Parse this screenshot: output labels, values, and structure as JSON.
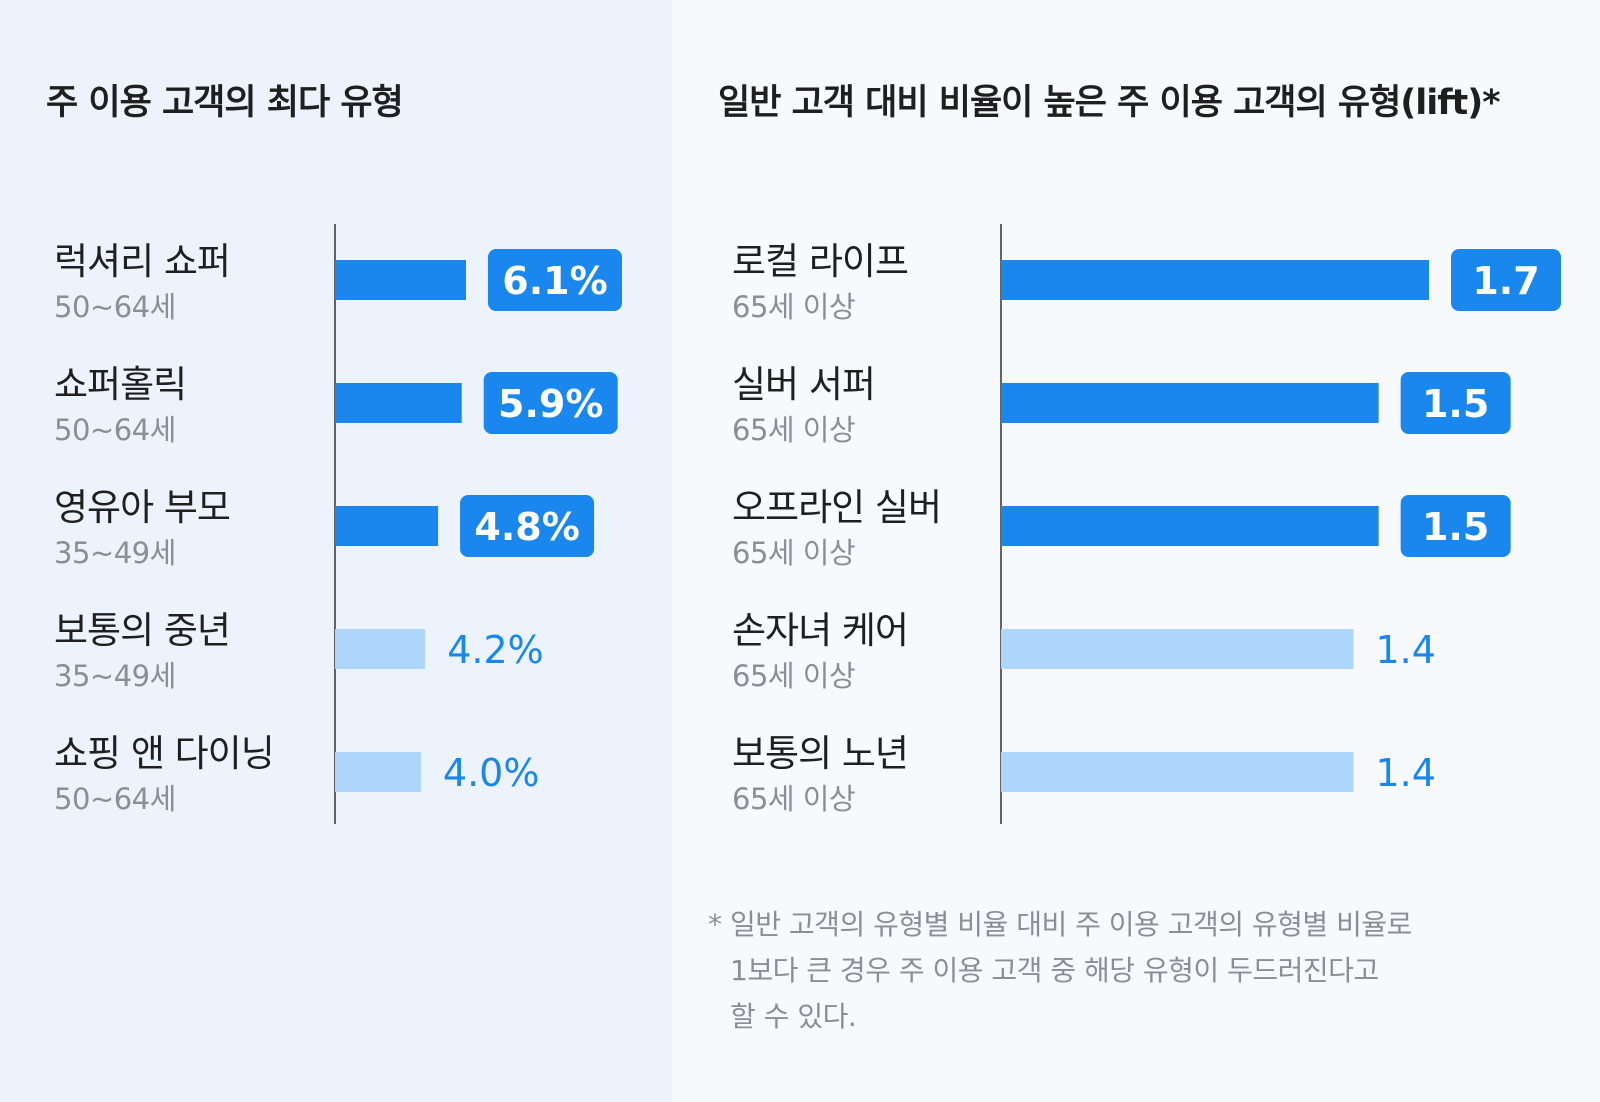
{
  "colors": {
    "accent": "#1a87ee",
    "accent_light": "#aed5fb",
    "label": "#1f1f1f",
    "sublabel": "#8a8f96",
    "axis": "#333333",
    "badge_text": "#ffffff"
  },
  "left_panel": {
    "title": "주 이용 고객의 최다 유형"
  },
  "right_panel": {
    "title": "일반 고객 대비 비율이 높은 주 이용 고객의 유형(lift)*",
    "footnote": {
      "star": "*",
      "lines": [
        "일반 고객의 유형별 비율 대비 주 이용 고객의 유형별 비율로",
        "1보다 큰 경우 주 이용 고객 중 해당 유형이 두드러진다고",
        "할 수 있다."
      ]
    }
  },
  "chart_data": [
    {
      "type": "bar",
      "orientation": "horizontal",
      "title": "주 이용 고객의 최다 유형",
      "categories": [
        "럭셔리 쇼퍼",
        "쇼퍼홀릭",
        "영유아 부모",
        "보통의 중년",
        "쇼핑 앤 다이닝"
      ],
      "sublabels": [
        "50~64세",
        "50~64세",
        "35~49세",
        "35~49세",
        "50~64세"
      ],
      "values": [
        6.1,
        5.9,
        4.8,
        4.2,
        4.0
      ],
      "value_labels": [
        "6.1%",
        "5.9%",
        "4.8%",
        "4.2%",
        "4.0%"
      ],
      "highlighted": [
        true,
        true,
        true,
        false,
        false
      ],
      "xlim": [
        0,
        6.1
      ]
    },
    {
      "type": "bar",
      "orientation": "horizontal",
      "title": "일반 고객 대비 비율이 높은 주 이용 고객의 유형(lift)*",
      "categories": [
        "로컬 라이프",
        "실버 서퍼",
        "오프라인 실버",
        "손자녀 케어",
        "보통의 노년"
      ],
      "sublabels": [
        "65세 이상",
        "65세 이상",
        "65세 이상",
        "65세 이상",
        "65세 이상"
      ],
      "values": [
        1.7,
        1.5,
        1.5,
        1.4,
        1.4
      ],
      "value_labels": [
        "1.7",
        "1.5",
        "1.5",
        "1.4",
        "1.4"
      ],
      "highlighted": [
        true,
        true,
        true,
        false,
        false
      ],
      "xlim": [
        0,
        1.7
      ]
    }
  ]
}
